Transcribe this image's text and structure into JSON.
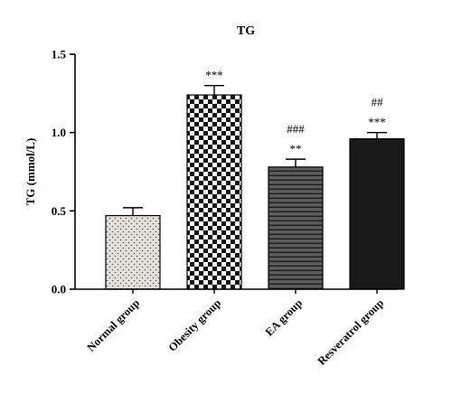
{
  "chart_data": {
    "type": "bar",
    "title": "TG",
    "xlabel": "",
    "ylabel": "TG (mmol/L)",
    "ylim": [
      0,
      1.5
    ],
    "yticks": [
      0.0,
      0.5,
      1.0,
      1.5
    ],
    "ytick_labels": [
      "0.0",
      "0.5",
      "1.0",
      "1.5"
    ],
    "categories": [
      "Normal group",
      "Obesity group",
      "EA group",
      "Resveratrol group"
    ],
    "values": [
      0.47,
      1.24,
      0.78,
      0.96
    ],
    "errors": [
      0.05,
      0.06,
      0.05,
      0.04
    ],
    "significance": [
      [],
      [
        "***"
      ],
      [
        "**",
        "###"
      ],
      [
        "***",
        "##"
      ]
    ],
    "patterns": [
      "dots",
      "checkerboard",
      "horizontal-stripes",
      "solid-black"
    ],
    "grid": false,
    "legend": "none"
  }
}
